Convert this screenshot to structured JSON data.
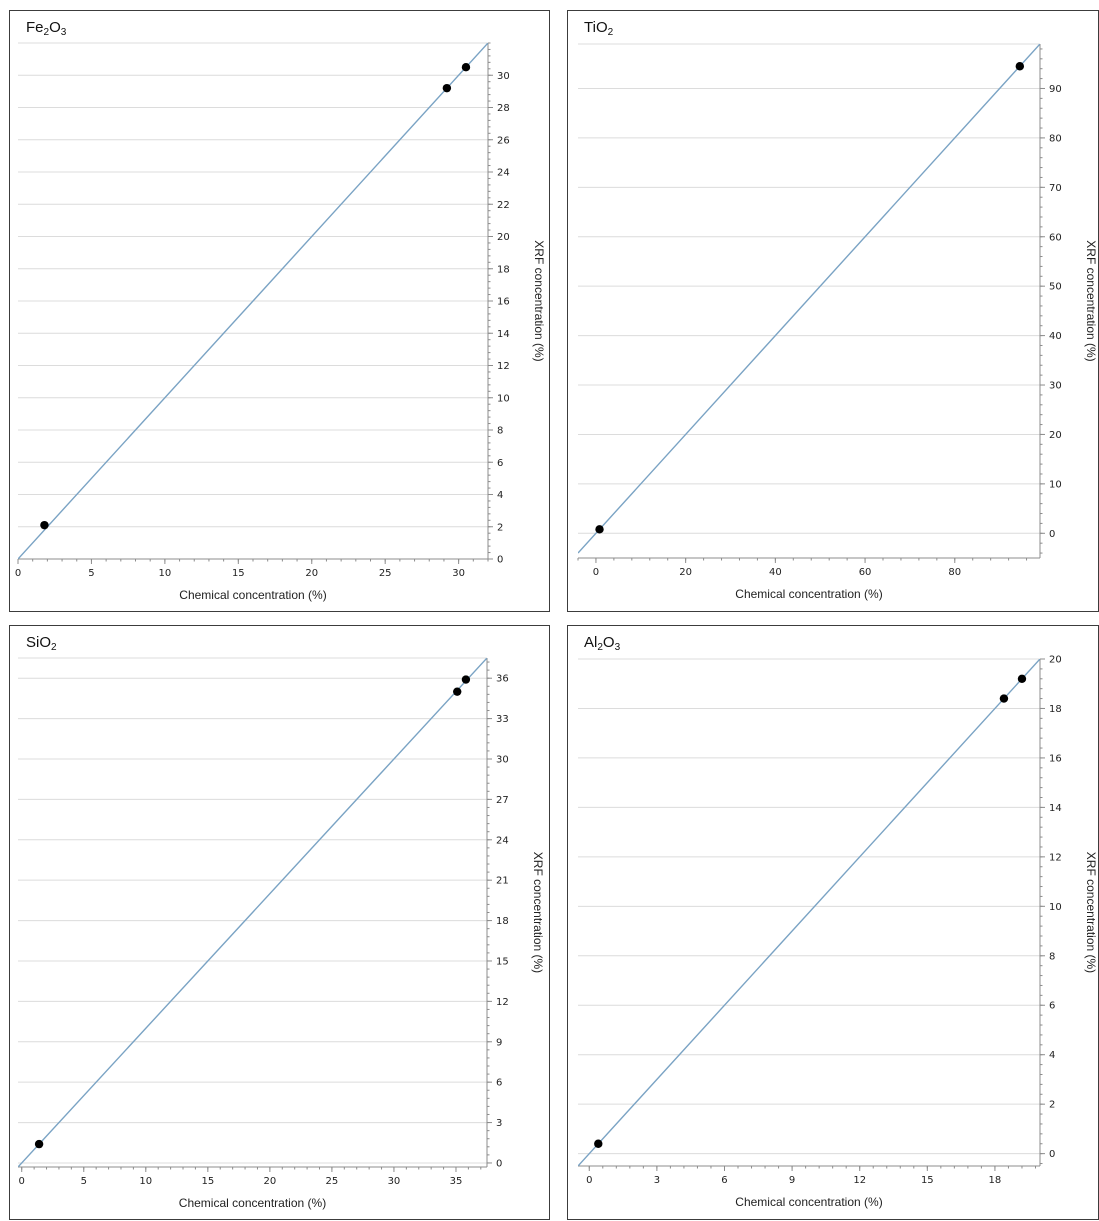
{
  "charts": [
    {
      "id": "fe2o3",
      "title_main": "Fe",
      "title_parts": [
        [
          "Fe",
          ""
        ],
        [
          "2",
          "sub"
        ],
        [
          "O",
          ""
        ],
        [
          "3",
          "sub"
        ]
      ],
      "xlabel": "Chemical concentration (%)",
      "ylabel": "XRF concentration (%)",
      "xlim": [
        0,
        32
      ],
      "ylim": [
        0,
        32
      ],
      "xticks": [
        0,
        5,
        10,
        15,
        20,
        25,
        30
      ],
      "yticks": [
        0,
        2,
        4,
        6,
        8,
        10,
        12,
        14,
        16,
        18,
        20,
        22,
        24,
        26,
        28,
        30
      ]
    },
    {
      "id": "tio2",
      "title_parts": [
        [
          "TiO",
          ""
        ],
        [
          "2",
          "sub"
        ]
      ],
      "xlabel": "Chemical concentration (%)",
      "ylabel": "XRF concentration (%)",
      "xlim": [
        -4,
        99
      ],
      "ylim": [
        -5,
        99
      ],
      "xticks": [
        0,
        20,
        40,
        60,
        80
      ],
      "yticks": [
        0,
        10,
        20,
        30,
        40,
        50,
        60,
        70,
        80,
        90
      ]
    },
    {
      "id": "sio2",
      "title_parts": [
        [
          "SiO",
          ""
        ],
        [
          "2",
          "sub"
        ]
      ],
      "xlabel": "Chemical concentration (%)",
      "ylabel": "XRF concentration (%)",
      "xlim": [
        -0.3,
        37.5
      ],
      "ylim": [
        -0.3,
        37.5
      ],
      "xticks": [
        0,
        5,
        10,
        15,
        20,
        25,
        30,
        35
      ],
      "yticks": [
        0,
        3,
        6,
        9,
        12,
        15,
        18,
        21,
        24,
        27,
        30,
        33,
        36
      ]
    },
    {
      "id": "al2o3",
      "title_parts": [
        [
          "Al",
          ""
        ],
        [
          "2",
          "sub"
        ],
        [
          "O",
          ""
        ],
        [
          "3",
          "sub"
        ]
      ],
      "xlabel": "Chemical concentration (%)",
      "ylabel": "XRF concentration (%)",
      "xlim": [
        -0.5,
        20
      ],
      "ylim": [
        -0.5,
        20
      ],
      "xticks": [
        0,
        3,
        6,
        9,
        12,
        15,
        18
      ],
      "yticks": [
        0,
        2,
        4,
        6,
        8,
        10,
        12,
        14,
        16,
        18,
        20
      ]
    }
  ],
  "chart_data": [
    {
      "type": "scatter",
      "title": "Fe2O3",
      "xlabel": "Chemical concentration (%)",
      "ylabel": "XRF concentration (%)",
      "xlim": [
        0,
        32
      ],
      "ylim": [
        0,
        32
      ],
      "grid": true,
      "series": [
        {
          "points": [
            [
              1.8,
              2.1
            ],
            [
              29.2,
              29.2
            ],
            [
              30.5,
              30.5
            ]
          ]
        }
      ],
      "reference_line": {
        "from": [
          0,
          0
        ],
        "to": [
          32,
          32
        ],
        "color": "#7aa3c4"
      },
      "marker_color": "#000000"
    },
    {
      "type": "scatter",
      "title": "TiO2",
      "xlabel": "Chemical concentration (%)",
      "ylabel": "XRF concentration (%)",
      "xlim": [
        -4,
        99
      ],
      "ylim": [
        -5,
        99
      ],
      "grid": true,
      "series": [
        {
          "points": [
            [
              0.8,
              0.8
            ],
            [
              94.5,
              94.5
            ]
          ]
        }
      ],
      "reference_line": {
        "from": [
          -4,
          -4
        ],
        "to": [
          99,
          99
        ],
        "color": "#7aa3c4"
      },
      "marker_color": "#000000"
    },
    {
      "type": "scatter",
      "title": "SiO2",
      "xlabel": "Chemical concentration (%)",
      "ylabel": "XRF concentration (%)",
      "xlim": [
        -0.3,
        37.5
      ],
      "ylim": [
        -0.3,
        37.5
      ],
      "grid": true,
      "series": [
        {
          "points": [
            [
              1.4,
              1.4
            ],
            [
              35.1,
              35.0
            ],
            [
              35.8,
              35.9
            ]
          ]
        }
      ],
      "reference_line": {
        "from": [
          -0.3,
          -0.3
        ],
        "to": [
          37.5,
          37.5
        ],
        "color": "#7aa3c4"
      },
      "marker_color": "#000000"
    },
    {
      "type": "scatter",
      "title": "Al2O3",
      "xlabel": "Chemical concentration (%)",
      "ylabel": "XRF concentration (%)",
      "xlim": [
        -0.5,
        20
      ],
      "ylim": [
        -0.5,
        20
      ],
      "grid": true,
      "series": [
        {
          "points": [
            [
              0.4,
              0.4
            ],
            [
              18.4,
              18.4
            ],
            [
              19.2,
              19.2
            ]
          ]
        }
      ],
      "reference_line": {
        "from": [
          -0.5,
          -0.5
        ],
        "to": [
          20,
          20
        ],
        "color": "#7aa3c4"
      },
      "marker_color": "#000000"
    }
  ]
}
